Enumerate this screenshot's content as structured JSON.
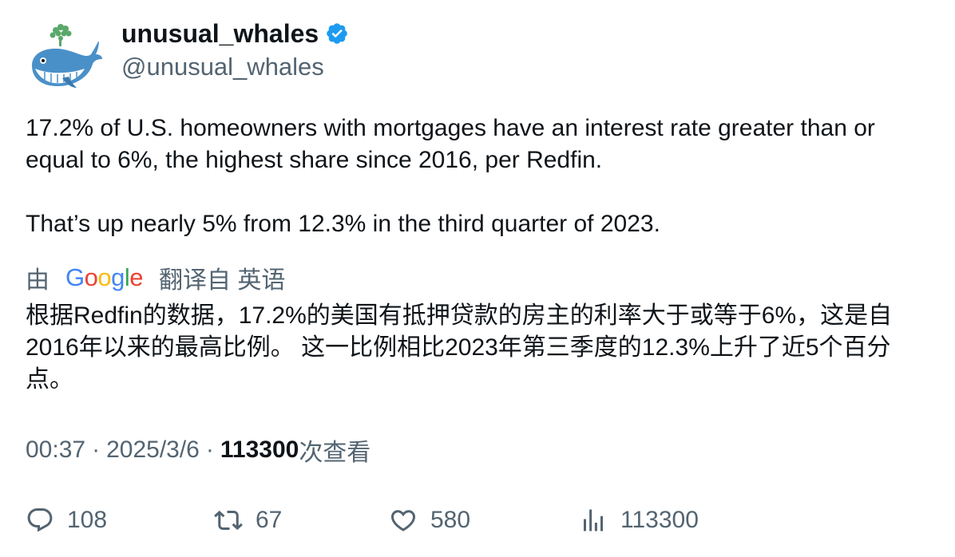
{
  "author": {
    "display_name": "unusual_whales",
    "handle": "@unusual_whales",
    "verified": true,
    "verified_color": "#1d9bf0"
  },
  "tweet": {
    "paragraphs": [
      "17.2% of U.S. homeowners with mortgages have an interest rate greater than or equal to 6%, the highest share since 2016, per Redfin.",
      "That’s up nearly 5% from 12.3% in the third quarter of 2023."
    ]
  },
  "translation": {
    "prefix": "由",
    "provider": "Google",
    "suffix": "翻译自 英语",
    "text": "根据Redfin的数据，17.2%的美国有抵押贷款的房主的利率大于或等于6%，这是自2016年以来的最高比例。 这一比例相比2023年第三季度的12.3%上升了近5个百分点。"
  },
  "meta": {
    "time": "00:37",
    "separator": "·",
    "date": "2025/3/6",
    "views_count": "113300",
    "views_label": "次查看"
  },
  "actions": {
    "reply": {
      "icon": "reply-icon",
      "count": "108"
    },
    "retweet": {
      "icon": "retweet-icon",
      "count": "67"
    },
    "like": {
      "icon": "heart-icon",
      "count": "580"
    },
    "views": {
      "icon": "views-chart-icon",
      "count": "113300"
    }
  },
  "colors": {
    "text_primary": "#0f1419",
    "text_secondary": "#536471",
    "google_blue": "#4285f4",
    "google_red": "#ea4335",
    "google_yellow": "#fbbc05",
    "google_green": "#34a853"
  }
}
